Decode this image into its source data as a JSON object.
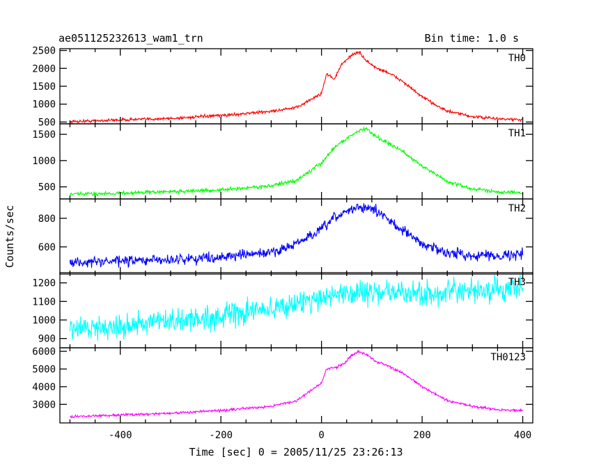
{
  "title_left": "ae051125232613_wam1_trn",
  "title_right": "Bin time: 1.0 s",
  "xlabel": "Time [sec] 0 = 2005/11/25 23:26:13",
  "ylabel": "Counts/sec",
  "chart_data": [
    {
      "type": "line",
      "name": "TH0",
      "color": "#ff0000",
      "xlim": [
        -520,
        420
      ],
      "ylim": [
        450,
        2550
      ],
      "yticks": [
        500,
        1000,
        1500,
        2000,
        2500
      ],
      "xticks": [
        -400,
        -200,
        0,
        200,
        400
      ],
      "x": [
        -500,
        -400,
        -300,
        -200,
        -100,
        -50,
        0,
        10,
        25,
        40,
        60,
        75,
        90,
        110,
        130,
        160,
        200,
        250,
        300,
        350,
        400
      ],
      "y": [
        510,
        560,
        600,
        680,
        800,
        900,
        1300,
        1850,
        1700,
        2100,
        2380,
        2450,
        2200,
        2000,
        1900,
        1650,
        1200,
        800,
        650,
        590,
        560
      ],
      "noise": 30
    },
    {
      "type": "line",
      "name": "TH1",
      "color": "#00ff00",
      "xlim": [
        -520,
        420
      ],
      "ylim": [
        270,
        1700
      ],
      "yticks": [
        500,
        1000,
        1500
      ],
      "xticks": [
        -400,
        -200,
        0,
        200,
        400
      ],
      "x": [
        -500,
        -400,
        -300,
        -200,
        -100,
        -50,
        0,
        25,
        50,
        75,
        90,
        110,
        130,
        160,
        200,
        250,
        300,
        350,
        400
      ],
      "y": [
        360,
        380,
        410,
        440,
        520,
        620,
        950,
        1250,
        1420,
        1580,
        1600,
        1450,
        1350,
        1180,
        900,
        600,
        460,
        410,
        380
      ],
      "noise": 25
    },
    {
      "type": "line",
      "name": "TH2",
      "color": "#0000ff",
      "xlim": [
        -520,
        420
      ],
      "ylim": [
        410,
        935
      ],
      "yticks": [
        600,
        800
      ],
      "xticks": [
        -400,
        -200,
        0,
        200,
        400
      ],
      "x": [
        -500,
        -400,
        -300,
        -200,
        -100,
        -50,
        0,
        25,
        50,
        75,
        90,
        110,
        130,
        160,
        200,
        250,
        300,
        350,
        400
      ],
      "y": [
        490,
        500,
        510,
        530,
        560,
        620,
        720,
        800,
        850,
        880,
        870,
        850,
        800,
        720,
        620,
        560,
        540,
        540,
        550
      ],
      "noise": 25
    },
    {
      "type": "line",
      "name": "TH3",
      "color": "#00ffff",
      "xlim": [
        -520,
        420
      ],
      "ylim": [
        850,
        1255
      ],
      "yticks": [
        900,
        1000,
        1100,
        1200
      ],
      "xticks": [
        -400,
        -200,
        0,
        200,
        400
      ],
      "x": [
        -500,
        -400,
        -300,
        -200,
        -100,
        -50,
        0,
        50,
        100,
        200,
        300,
        400
      ],
      "y": [
        950,
        970,
        990,
        1020,
        1060,
        1090,
        1120,
        1150,
        1150,
        1140,
        1150,
        1170
      ],
      "noise": 45
    },
    {
      "type": "line",
      "name": "TH0123",
      "color": "#ff00ff",
      "xlim": [
        -520,
        420
      ],
      "ylim": [
        1950,
        6200
      ],
      "yticks": [
        3000,
        4000,
        5000,
        6000
      ],
      "xticks": [
        -400,
        -200,
        0,
        200,
        400
      ],
      "x": [
        -500,
        -400,
        -300,
        -200,
        -100,
        -50,
        0,
        10,
        30,
        45,
        60,
        75,
        90,
        110,
        130,
        160,
        200,
        250,
        300,
        350,
        400
      ],
      "y": [
        2300,
        2400,
        2500,
        2650,
        2900,
        3200,
        4200,
        5000,
        5100,
        5300,
        5800,
        6000,
        5800,
        5400,
        5200,
        4800,
        4000,
        3200,
        2900,
        2700,
        2650
      ],
      "noise": 50
    }
  ]
}
